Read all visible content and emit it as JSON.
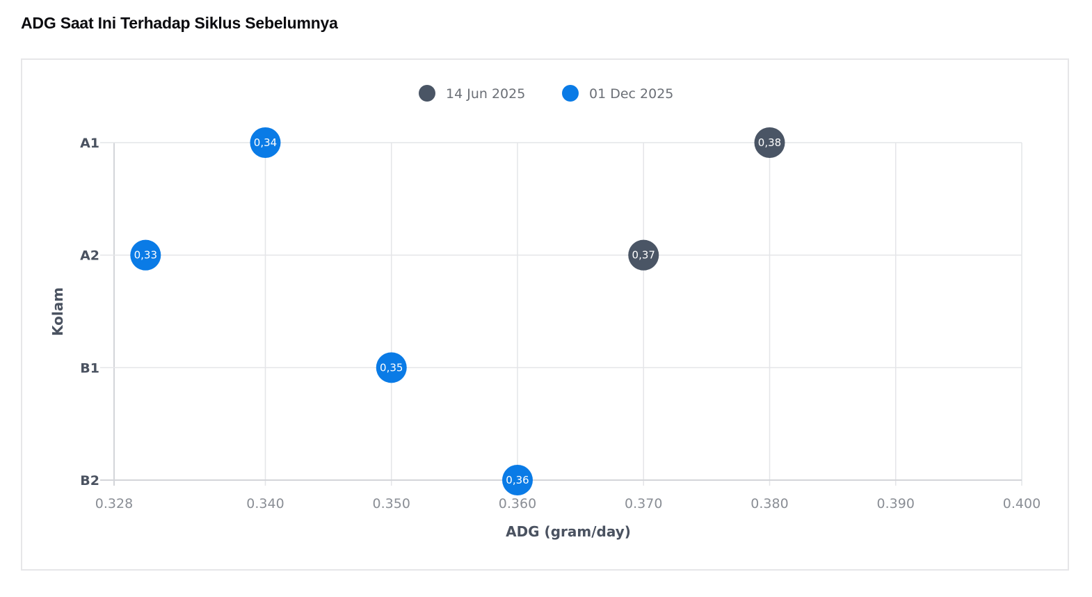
{
  "page": {
    "title": "ADG Saat Ini Terhadap Siklus Sebelumnya"
  },
  "colors": {
    "series_prev": "#4a5565",
    "series_curr": "#0a7be6",
    "grid": "#e4e5e8",
    "axis": "#d3d5d9"
  },
  "chart_data": {
    "type": "scatter",
    "title": "ADG Saat Ini Terhadap Siklus Sebelumnya",
    "xlabel": "ADG (gram/day)",
    "ylabel": "Kolam",
    "xlim": [
      0.328,
      0.4
    ],
    "x_ticks": [
      "0.328",
      "0.340",
      "0.350",
      "0.360",
      "0.370",
      "0.380",
      "0.390",
      "0.400"
    ],
    "categories": [
      "A1",
      "A2",
      "B1",
      "B2"
    ],
    "grid": true,
    "legend_position": "top-center",
    "series": [
      {
        "name": "14 Jun 2025",
        "color": "#4a5565",
        "points": [
          {
            "category": "A1",
            "x": 0.38,
            "label": "0,38"
          },
          {
            "category": "A2",
            "x": 0.37,
            "label": "0,37"
          }
        ]
      },
      {
        "name": "01 Dec 2025",
        "color": "#0a7be6",
        "points": [
          {
            "category": "A1",
            "x": 0.34,
            "label": "0,34"
          },
          {
            "category": "A2",
            "x": 0.3305,
            "label": "0,33"
          },
          {
            "category": "B1",
            "x": 0.35,
            "label": "0,35"
          },
          {
            "category": "B2",
            "x": 0.36,
            "label": "0,36"
          }
        ]
      }
    ]
  }
}
